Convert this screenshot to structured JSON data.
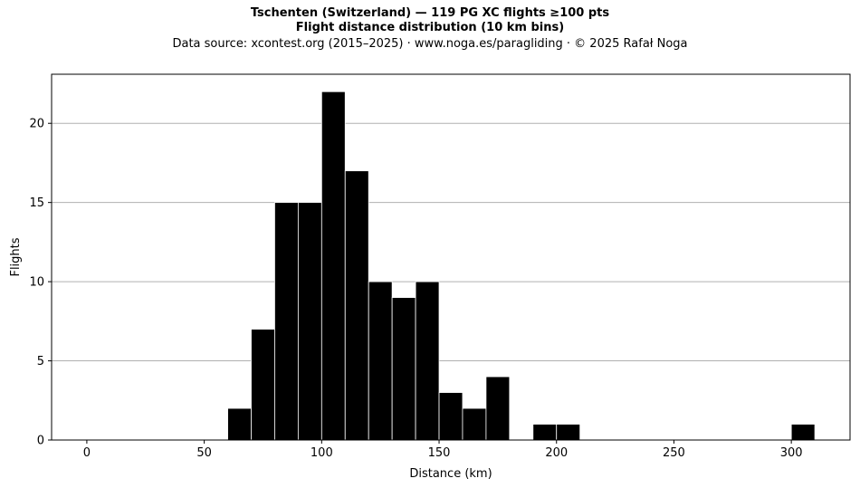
{
  "chart_data": {
    "type": "bar",
    "title_line1": "Tschenten (Switzerland)  —  119 PG XC flights ≥100 pts",
    "title_line2": "Flight distance distribution (10 km bins)",
    "subtitle": "Data source: xcontest.org (2015–2025)  ·  www.noga.es/paragliding  ·  © 2025 Rafał Noga",
    "xlabel": "Distance (km)",
    "ylabel": "Flights",
    "xlim": [
      -15,
      325
    ],
    "ylim": [
      0,
      23.1
    ],
    "xticks": [
      0,
      50,
      100,
      150,
      200,
      250,
      300
    ],
    "yticks": [
      0,
      5,
      10,
      15,
      20
    ],
    "grid": "y",
    "bin_width": 10,
    "bins": [
      {
        "start": 60,
        "count": 2
      },
      {
        "start": 70,
        "count": 7
      },
      {
        "start": 80,
        "count": 15
      },
      {
        "start": 90,
        "count": 15
      },
      {
        "start": 100,
        "count": 22
      },
      {
        "start": 110,
        "count": 17
      },
      {
        "start": 120,
        "count": 10
      },
      {
        "start": 130,
        "count": 9
      },
      {
        "start": 140,
        "count": 10
      },
      {
        "start": 150,
        "count": 3
      },
      {
        "start": 160,
        "count": 2
      },
      {
        "start": 170,
        "count": 4
      },
      {
        "start": 190,
        "count": 1
      },
      {
        "start": 200,
        "count": 1
      },
      {
        "start": 300,
        "count": 1
      }
    ],
    "bar_color": "#000000",
    "edge_color": "#ffffff",
    "grid_color": "#b0b0b0"
  }
}
